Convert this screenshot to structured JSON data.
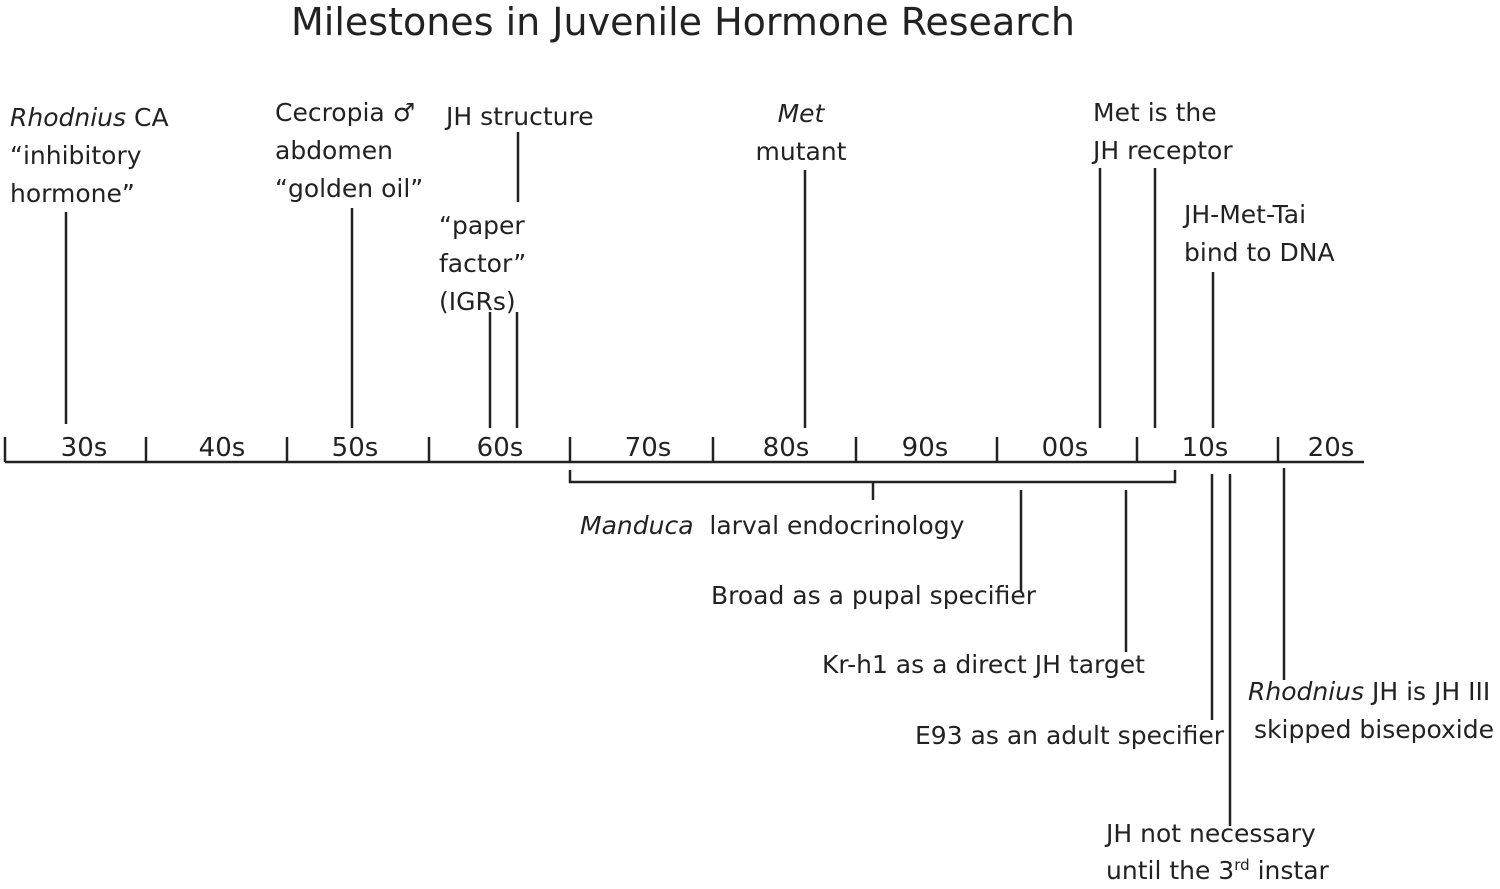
{
  "title": "Milestones in Juvenile Hormone Research",
  "decades": [
    "30s",
    "40s",
    "50s",
    "60s",
    "70s",
    "80s",
    "90s",
    "00s",
    "10s",
    "20s"
  ],
  "above": {
    "rhodnius_ca": {
      "italic": "Rhodnius",
      "l1_rest": " CA",
      "l2": "“inhibitory",
      "l3": "hormone”"
    },
    "cecropia": {
      "l1": "Cecropia ♂",
      "l2": "abdomen",
      "l3": "“golden oil”"
    },
    "jh_structure": {
      "l1": "JH structure"
    },
    "paper_factor": {
      "l1": "“paper",
      "l2": "factor”",
      "l3": "(IGRs)"
    },
    "met_mutant": {
      "italic": "Met",
      "l2": "mutant"
    },
    "met_receptor": {
      "l1": "Met is the",
      "l2": "JH receptor"
    },
    "jh_met_tai": {
      "l1": "JH-Met-Tai",
      "l2": "bind to DNA"
    }
  },
  "below": {
    "manduca": {
      "italic": "Manduca",
      "rest": "  larval endocrinology"
    },
    "broad": "Broad as a pupal specifier",
    "krh1": "Kr-h1 as a direct JH target",
    "e93": "E93 as an adult specifier",
    "rhodnius_jh3": {
      "italic": "Rhodnius",
      "l1_rest": " JH is JH III",
      "l2": "skipped bisepoxide"
    },
    "jh_not_necessary": {
      "l1": "JH not necessary",
      "l2_pre": "until the 3",
      "l2_sup": "rd",
      "l2_post": " instar"
    }
  },
  "colors": {
    "ink": "#222222",
    "background": "#ffffff"
  }
}
